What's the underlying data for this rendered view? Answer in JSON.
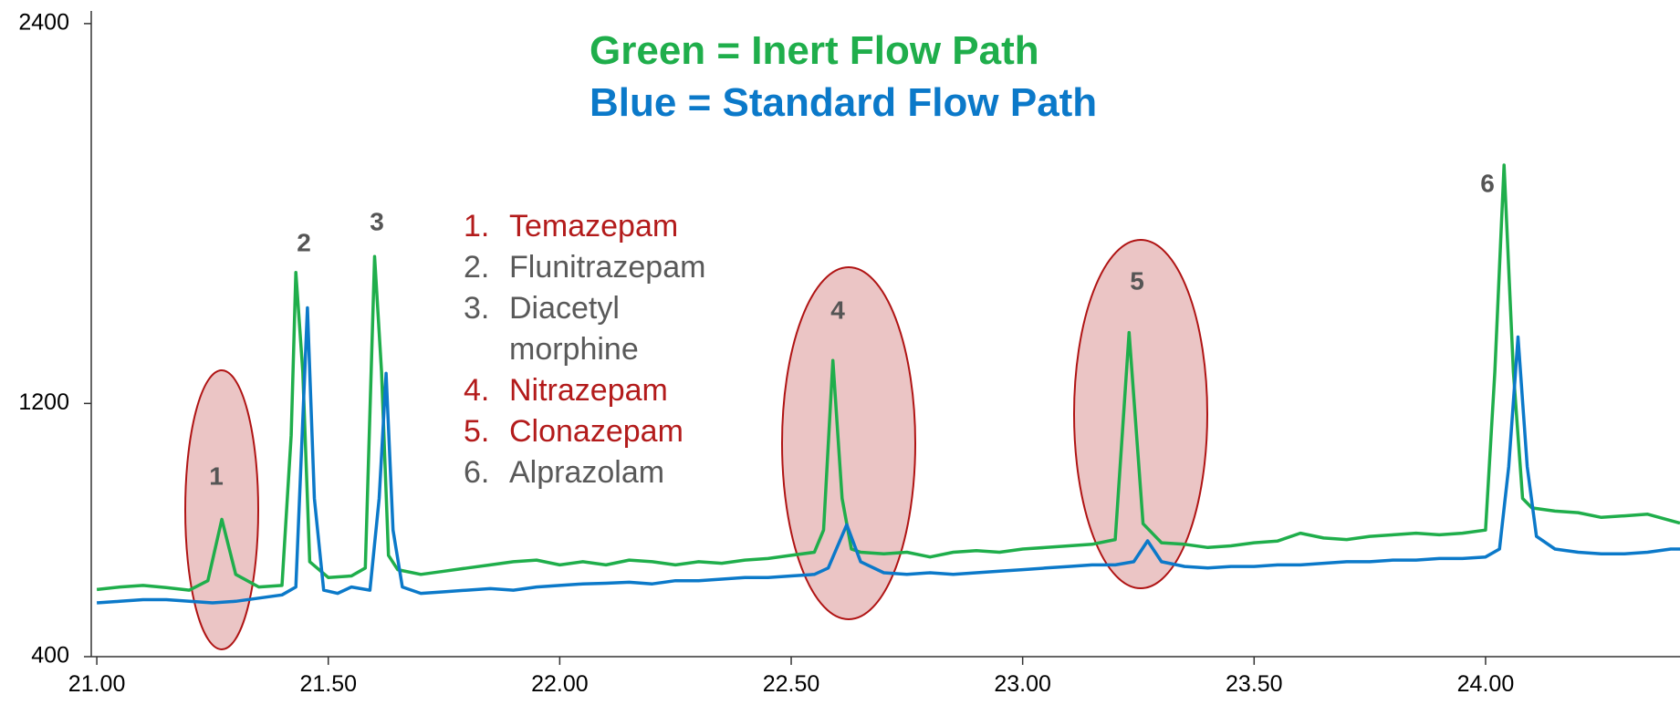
{
  "chart_data": {
    "type": "line",
    "title_lines": [
      "Green = Inert Flow Path",
      "Blue = Standard Flow Path"
    ],
    "title_colors": [
      "#1fae4b",
      "#0b79c9"
    ],
    "xlim": [
      20.988,
      24.42
    ],
    "ylim": [
      400,
      2440
    ],
    "xticks": [
      {
        "value": 21,
        "label": "21.00"
      },
      {
        "value": 21.5,
        "label": "21.50"
      },
      {
        "value": 22,
        "label": "22.00"
      },
      {
        "value": 22.5,
        "label": "22.50"
      },
      {
        "value": 23,
        "label": "23.00"
      },
      {
        "value": 23.5,
        "label": "23.50"
      },
      {
        "value": 24,
        "label": "24.00"
      }
    ],
    "yticks": [
      400,
      1200,
      2400
    ],
    "grid": false,
    "series": [
      {
        "name": "Inert Flow Path",
        "color": "#1fae4b",
        "x": [
          21.0,
          21.05,
          21.1,
          21.15,
          21.2,
          21.24,
          21.27,
          21.3,
          21.35,
          21.4,
          21.42,
          21.43,
          21.445,
          21.46,
          21.5,
          21.55,
          21.58,
          21.6,
          21.615,
          21.63,
          21.65,
          21.7,
          21.75,
          21.8,
          21.85,
          21.9,
          21.95,
          22.0,
          22.05,
          22.1,
          22.15,
          22.2,
          22.25,
          22.3,
          22.35,
          22.4,
          22.45,
          22.5,
          22.55,
          22.57,
          22.59,
          22.61,
          22.63,
          22.65,
          22.7,
          22.75,
          22.8,
          22.85,
          22.9,
          22.95,
          23.0,
          23.05,
          23.1,
          23.15,
          23.2,
          23.23,
          23.26,
          23.3,
          23.35,
          23.4,
          23.45,
          23.5,
          23.55,
          23.6,
          23.65,
          23.7,
          23.75,
          23.8,
          23.85,
          23.9,
          23.95,
          24.0,
          24.02,
          24.04,
          24.06,
          24.08,
          24.1,
          24.15,
          24.2,
          24.25,
          24.3,
          24.35,
          24.4,
          24.42
        ],
        "values": [
          612,
          620,
          625,
          618,
          610,
          640,
          834,
          660,
          620,
          625,
          1100,
          1614,
          1300,
          700,
          650,
          655,
          680,
          1664,
          1300,
          720,
          675,
          660,
          670,
          680,
          690,
          700,
          705,
          690,
          700,
          690,
          705,
          700,
          690,
          700,
          695,
          705,
          710,
          720,
          730,
          800,
          1336,
          900,
          740,
          730,
          725,
          730,
          715,
          730,
          735,
          730,
          740,
          745,
          750,
          755,
          770,
          1424,
          820,
          760,
          755,
          745,
          750,
          760,
          765,
          790,
          775,
          770,
          780,
          785,
          790,
          785,
          790,
          800,
          1300,
          1953,
          1300,
          900,
          870,
          860,
          855,
          840,
          845,
          850,
          830,
          822
        ]
      },
      {
        "name": "Standard Flow Path",
        "color": "#0b79c9",
        "x": [
          21.0,
          21.05,
          21.1,
          21.15,
          21.2,
          21.25,
          21.3,
          21.35,
          21.4,
          21.43,
          21.455,
          21.47,
          21.49,
          21.52,
          21.55,
          21.59,
          21.61,
          21.625,
          21.64,
          21.66,
          21.7,
          21.75,
          21.8,
          21.85,
          21.9,
          21.95,
          22.0,
          22.05,
          22.1,
          22.15,
          22.2,
          22.25,
          22.3,
          22.35,
          22.4,
          22.45,
          22.5,
          22.55,
          22.58,
          22.62,
          22.65,
          22.7,
          22.75,
          22.8,
          22.85,
          22.9,
          22.95,
          23.0,
          23.05,
          23.1,
          23.15,
          23.2,
          23.24,
          23.27,
          23.3,
          23.35,
          23.4,
          23.45,
          23.5,
          23.55,
          23.6,
          23.65,
          23.7,
          23.75,
          23.8,
          23.85,
          23.9,
          23.95,
          24.0,
          24.03,
          24.05,
          24.07,
          24.09,
          24.11,
          24.15,
          24.2,
          24.25,
          24.3,
          24.35,
          24.4,
          24.42
        ],
        "values": [
          570,
          575,
          580,
          580,
          575,
          570,
          575,
          585,
          595,
          620,
          1502,
          900,
          610,
          600,
          620,
          610,
          900,
          1295,
          800,
          620,
          600,
          605,
          610,
          615,
          610,
          620,
          625,
          630,
          632,
          635,
          630,
          640,
          640,
          645,
          650,
          650,
          655,
          660,
          680,
          817,
          700,
          665,
          660,
          665,
          660,
          665,
          670,
          675,
          680,
          685,
          690,
          690,
          700,
          766,
          700,
          685,
          680,
          685,
          685,
          690,
          690,
          695,
          700,
          700,
          705,
          705,
          710,
          710,
          715,
          740,
          1000,
          1410,
          1000,
          780,
          740,
          730,
          725,
          725,
          730,
          740,
          740
        ]
      }
    ],
    "peak_labels": [
      "1",
      "2",
      "3",
      "4",
      "5",
      "6"
    ],
    "compounds": [
      {
        "number": "1.",
        "name": "Temazepam",
        "color": "#b31b1b"
      },
      {
        "number": "2.",
        "name": "Flunitrazepam",
        "color": "#595959"
      },
      {
        "number": "3.",
        "name": "Diacetyl morphine",
        "color": "#595959"
      },
      {
        "number": "4.",
        "name": "Nitrazepam",
        "color": "#b31b1b"
      },
      {
        "number": "5.",
        "name": "Clonazepam",
        "color": "#b31b1b"
      },
      {
        "number": "6.",
        "name": "Alprazolam",
        "color": "#595959"
      }
    ]
  }
}
